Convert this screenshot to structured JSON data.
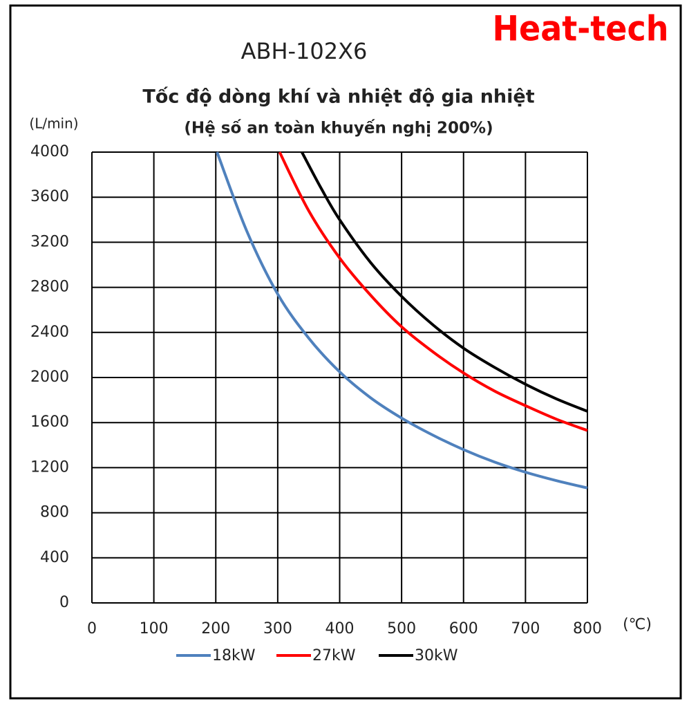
{
  "chart_data": {
    "type": "line",
    "brand": "Heat-tech",
    "title": "ABH-102X6",
    "subtitle": "Tốc độ dòng khí và nhiệt độ gia nhiệt",
    "subtitle_line2": "(Hệ số an toàn khuyến nghị 200%)",
    "y_label": "(L/min)",
    "x_label": "(℃)",
    "xlim": [
      0,
      800
    ],
    "xticks": [
      0,
      100,
      200,
      300,
      400,
      500,
      600,
      700,
      800
    ],
    "ylim": [
      0,
      4000
    ],
    "yticks": [
      0,
      400,
      800,
      1200,
      1600,
      2000,
      2400,
      2800,
      3200,
      3600,
      4000
    ],
    "grid": true,
    "legend": "bottom",
    "series": [
      {
        "name": "18kW",
        "color": "#4f81bd",
        "x": [
          202,
          250,
          300,
          350,
          400,
          450,
          500,
          550,
          600,
          650,
          700,
          750,
          800
        ],
        "values": [
          4000,
          3300,
          2740,
          2350,
          2050,
          1820,
          1640,
          1490,
          1360,
          1250,
          1160,
          1085,
          1020
        ]
      },
      {
        "name": "27kW",
        "color": "#ff0000",
        "x": [
          303,
          350,
          400,
          450,
          500,
          550,
          600,
          650,
          700,
          750,
          800
        ],
        "values": [
          4000,
          3480,
          3060,
          2730,
          2450,
          2230,
          2040,
          1880,
          1750,
          1630,
          1530
        ]
      },
      {
        "name": "30kW",
        "color": "#000000",
        "x": [
          339,
          370,
          400,
          450,
          500,
          550,
          600,
          650,
          700,
          750,
          800
        ],
        "values": [
          4000,
          3680,
          3400,
          3020,
          2720,
          2470,
          2260,
          2090,
          1940,
          1810,
          1700
        ]
      }
    ]
  }
}
